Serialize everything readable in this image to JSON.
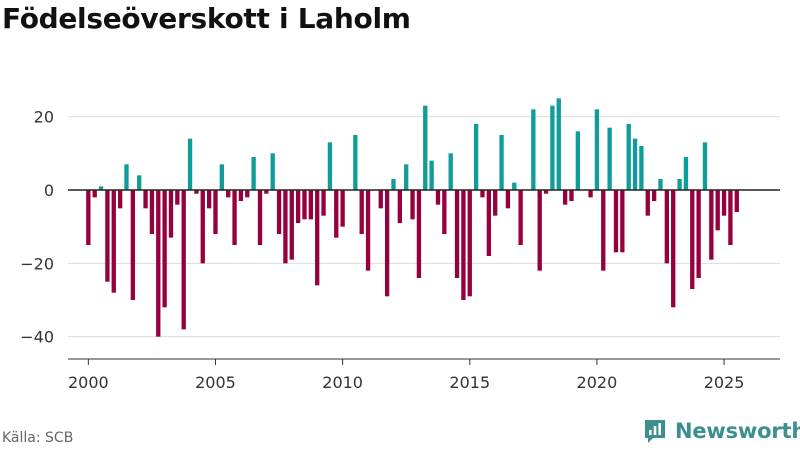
{
  "title": "Födelseöverskott i Laholm",
  "source": "Källa: SCB",
  "brand": {
    "name": "Newsworthy",
    "icon": "newsworthy-logo-icon"
  },
  "colors": {
    "positive": "#109d99",
    "negative": "#96003c",
    "grid": "#dddddd",
    "zero_line": "#222222",
    "text": "#333333",
    "brand": "#3d8f8d"
  },
  "chart_data": {
    "type": "bar",
    "title": "Födelseöverskott i Laholm",
    "xlabel": "",
    "ylabel": "",
    "x_ticks": [
      "2000",
      "2005",
      "2010",
      "2015",
      "2020",
      "2025"
    ],
    "y_ticks": [
      "20",
      "0",
      "−20",
      "−40"
    ],
    "xlim": [
      1999.2,
      2027.2
    ],
    "ylim": [
      -45,
      30
    ],
    "grid": true,
    "frequency": "quarterly",
    "x": [
      2000.0,
      2000.25,
      2000.5,
      2000.75,
      2001.0,
      2001.25,
      2001.5,
      2001.75,
      2002.0,
      2002.25,
      2002.5,
      2002.75,
      2003.0,
      2003.25,
      2003.5,
      2003.75,
      2004.0,
      2004.25,
      2004.5,
      2004.75,
      2005.0,
      2005.25,
      2005.5,
      2005.75,
      2006.0,
      2006.25,
      2006.5,
      2006.75,
      2007.0,
      2007.25,
      2007.5,
      2007.75,
      2008.0,
      2008.25,
      2008.5,
      2008.75,
      2009.0,
      2009.25,
      2009.5,
      2009.75,
      2010.0,
      2010.25,
      2010.5,
      2010.75,
      2011.0,
      2011.25,
      2011.5,
      2011.75,
      2012.0,
      2012.25,
      2012.5,
      2012.75,
      2013.0,
      2013.25,
      2013.5,
      2013.75,
      2014.0,
      2014.25,
      2014.5,
      2014.75,
      2015.0,
      2015.25,
      2015.5,
      2015.75,
      2016.0,
      2016.25,
      2016.5,
      2016.75,
      2017.0,
      2017.25,
      2017.5,
      2017.75,
      2018.0,
      2018.25,
      2018.5,
      2018.75,
      2019.0,
      2019.25,
      2019.5,
      2019.75,
      2020.0,
      2020.25,
      2020.5,
      2020.75,
      2021.0,
      2021.25,
      2021.5,
      2021.75,
      2022.0,
      2022.25,
      2022.5,
      2022.75,
      2023.0,
      2023.25,
      2023.5,
      2023.75,
      2024.0,
      2024.25,
      2024.5,
      2024.75,
      2025.0,
      2025.25,
      2025.5
    ],
    "values": [
      -15,
      -2,
      1,
      -25,
      -28,
      -5,
      7,
      -30,
      4,
      -5,
      -12,
      -40,
      -32,
      -13,
      -4,
      -38,
      14,
      -1,
      -20,
      -5,
      -12,
      7,
      -2,
      -15,
      -3,
      -2,
      9,
      -15,
      -1,
      10,
      -12,
      -20,
      -19,
      -9,
      -8,
      -8,
      -26,
      -7,
      13,
      -13,
      -10,
      0,
      15,
      -12,
      -22,
      0,
      -5,
      -29,
      3,
      -9,
      7,
      -8,
      -24,
      23,
      8,
      -4,
      -12,
      10,
      -24,
      -30,
      -29,
      18,
      -2,
      -18,
      -7,
      15,
      -5,
      2,
      -15,
      0,
      22,
      -22,
      -1,
      23,
      25,
      -4,
      -3,
      16,
      0,
      -2,
      22,
      -22,
      17,
      -17,
      -17,
      18,
      14,
      12,
      -7,
      -3,
      3,
      -20,
      -32,
      3,
      9,
      -27,
      -24,
      13,
      -19,
      -11,
      -7,
      -15,
      -6
    ]
  }
}
